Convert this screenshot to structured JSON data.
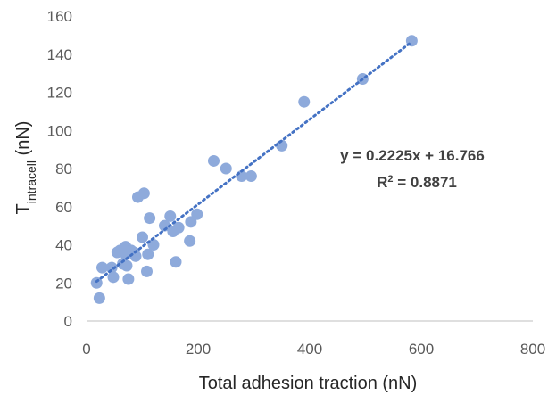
{
  "colors": {
    "marker": "#8eaadb",
    "trendline": "#4472c4",
    "axis": "#bfbfbf",
    "text": "#595959"
  },
  "chart_data": {
    "type": "scatter",
    "xlabel": "Total adhesion traction (nN)",
    "ylabel": {
      "base": "T",
      "subscript": "intracell",
      "suffix": " (nN)"
    },
    "xlim": [
      0,
      800
    ],
    "ylim": [
      0,
      160
    ],
    "x_ticks": [
      0,
      200,
      400,
      600,
      800
    ],
    "y_ticks": [
      0,
      20,
      40,
      60,
      80,
      100,
      120,
      140,
      160
    ],
    "grid": false,
    "trendline": {
      "style": "dotted",
      "slope": 0.2225,
      "intercept": 16.766,
      "x_range": [
        18,
        583
      ]
    },
    "annotations": {
      "equation": "y = 0.2225x + 16.766",
      "r2_base": "R",
      "r2_sup": "2",
      "r2_value": " = 0.8871"
    },
    "points": [
      [
        18,
        20
      ],
      [
        23,
        12
      ],
      [
        28,
        28
      ],
      [
        45,
        28
      ],
      [
        48,
        23
      ],
      [
        55,
        36
      ],
      [
        60,
        37
      ],
      [
        65,
        30
      ],
      [
        70,
        35
      ],
      [
        70,
        39
      ],
      [
        72,
        29
      ],
      [
        75,
        22
      ],
      [
        80,
        37
      ],
      [
        85,
        36
      ],
      [
        88,
        34
      ],
      [
        92,
        65
      ],
      [
        100,
        44
      ],
      [
        103,
        67
      ],
      [
        108,
        26
      ],
      [
        110,
        35
      ],
      [
        113,
        54
      ],
      [
        120,
        40
      ],
      [
        140,
        50
      ],
      [
        150,
        55
      ],
      [
        155,
        47
      ],
      [
        160,
        31
      ],
      [
        165,
        49
      ],
      [
        185,
        42
      ],
      [
        187,
        52
      ],
      [
        198,
        56
      ],
      [
        228,
        84
      ],
      [
        250,
        80
      ],
      [
        278,
        76
      ],
      [
        295,
        76
      ],
      [
        350,
        92
      ],
      [
        390,
        115
      ],
      [
        495,
        127
      ],
      [
        583,
        147
      ]
    ]
  }
}
